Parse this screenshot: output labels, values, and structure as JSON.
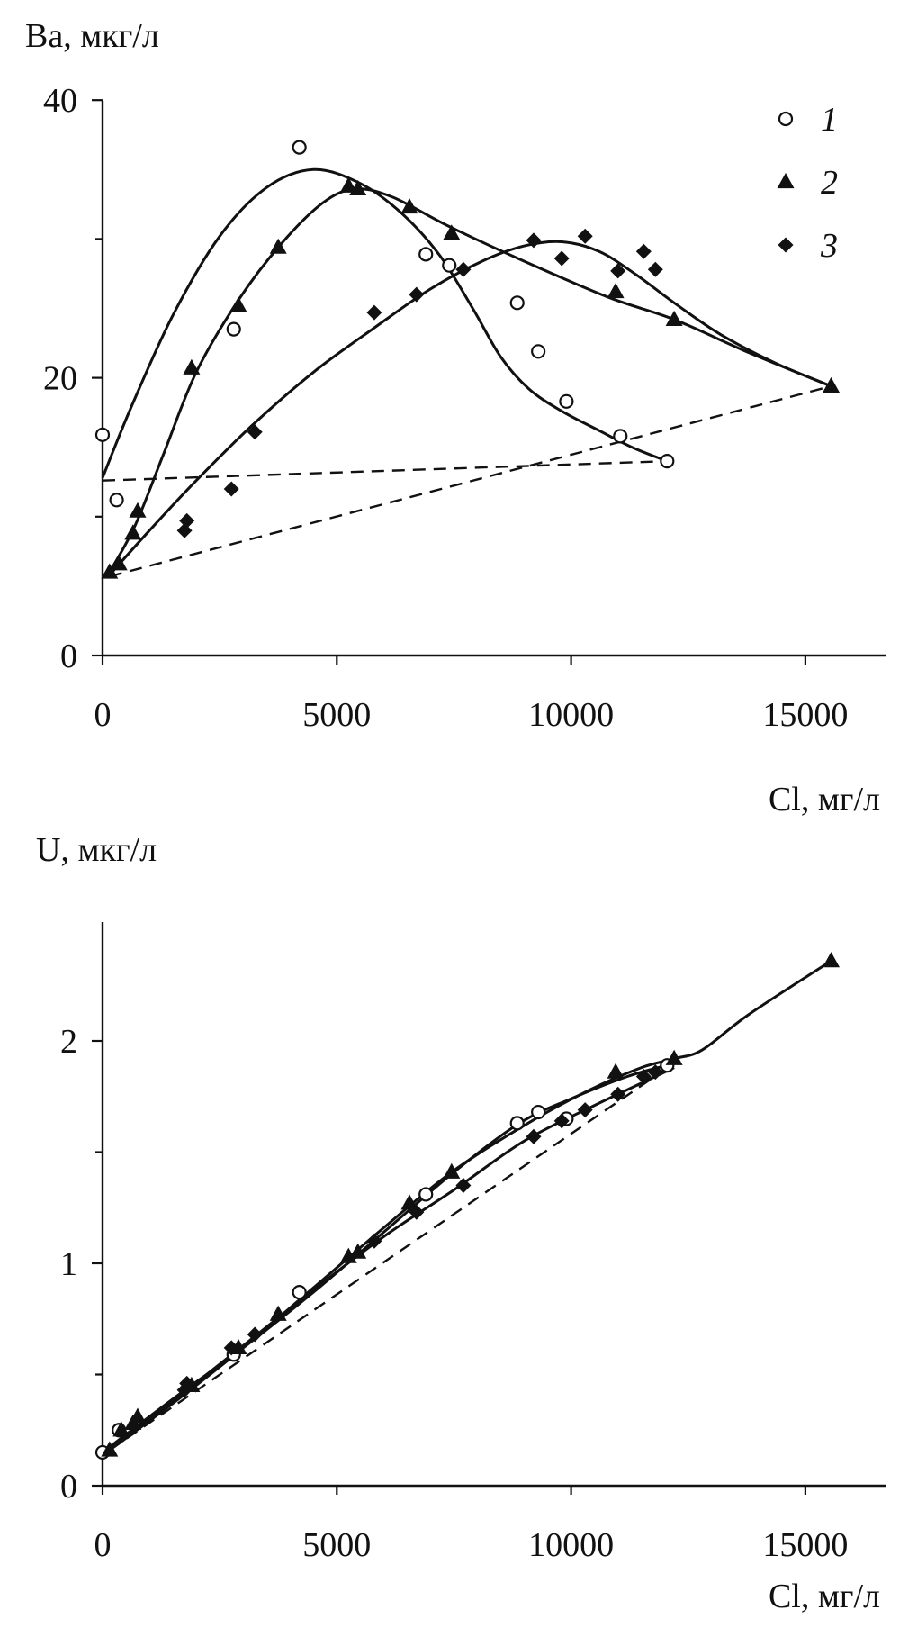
{
  "chart_data": [
    {
      "type": "scatter",
      "ylabel": "Ba, мкг/л",
      "xlabel": "Cl, мг/л",
      "xlim": [
        0,
        16000
      ],
      "ylim": [
        0,
        40
      ],
      "xticks": [
        0,
        5000,
        10000,
        15000
      ],
      "xtick_labels": [
        "0",
        "5000",
        "10000",
        "15000"
      ],
      "yticks": [
        0,
        20,
        40
      ],
      "ytick_labels": [
        "0",
        "20",
        "40"
      ],
      "minor_yticks": [
        10,
        30
      ],
      "legend_position": "top-right",
      "series": [
        {
          "name": "1",
          "marker": "open-circle",
          "points": [
            [
              0,
              15.9
            ],
            [
              300,
              11.2
            ],
            [
              2800,
              23.5
            ],
            [
              4200,
              36.6
            ],
            [
              6900,
              28.9
            ],
            [
              7400,
              28.1
            ],
            [
              8850,
              25.4
            ],
            [
              9300,
              21.9
            ],
            [
              9900,
              18.3
            ],
            [
              11050,
              15.8
            ],
            [
              12050,
              14.0
            ]
          ],
          "curve": [
            [
              0,
              12.8
            ],
            [
              600,
              17.8
            ],
            [
              1500,
              24.5
            ],
            [
              2500,
              30.2
            ],
            [
              3500,
              33.7
            ],
            [
              4500,
              35.0
            ],
            [
              5500,
              34.0
            ],
            [
              6400,
              31.8
            ],
            [
              7200,
              28.8
            ],
            [
              7900,
              25.0
            ],
            [
              8500,
              21.5
            ],
            [
              9100,
              19.2
            ],
            [
              9800,
              17.6
            ],
            [
              10600,
              16.2
            ],
            [
              11300,
              15.0
            ],
            [
              12050,
              14.0
            ]
          ],
          "dashed": [
            [
              0,
              12.6
            ],
            [
              12050,
              14.0
            ]
          ]
        },
        {
          "name": "2",
          "marker": "filled-triangle",
          "points": [
            [
              150,
              6.0
            ],
            [
              350,
              6.6
            ],
            [
              650,
              8.8
            ],
            [
              750,
              10.4
            ],
            [
              1900,
              20.7
            ],
            [
              2900,
              25.2
            ],
            [
              3750,
              29.4
            ],
            [
              5250,
              33.8
            ],
            [
              5450,
              33.6
            ],
            [
              6550,
              32.3
            ],
            [
              7450,
              30.4
            ],
            [
              10950,
              26.2
            ],
            [
              12200,
              24.2
            ],
            [
              15550,
              19.4
            ]
          ],
          "curve": [
            [
              150,
              6.0
            ],
            [
              700,
              9.4
            ],
            [
              1300,
              14.5
            ],
            [
              2000,
              20.4
            ],
            [
              2900,
              25.6
            ],
            [
              3800,
              29.6
            ],
            [
              4700,
              32.6
            ],
            [
              5400,
              33.6
            ],
            [
              6200,
              33.0
            ],
            [
              7400,
              30.9
            ],
            [
              9000,
              28.4
            ],
            [
              10800,
              25.8
            ],
            [
              12200,
              24.2
            ],
            [
              13800,
              21.8
            ],
            [
              15550,
              19.4
            ]
          ],
          "dashed": [
            [
              150,
              5.7
            ],
            [
              15550,
              19.4
            ]
          ]
        },
        {
          "name": "3",
          "marker": "filled-diamond",
          "points": [
            [
              1750,
              9.0
            ],
            [
              1800,
              9.7
            ],
            [
              2750,
              12.0
            ],
            [
              3250,
              16.1
            ],
            [
              5800,
              24.7
            ],
            [
              6700,
              26.0
            ],
            [
              7700,
              27.8
            ],
            [
              9200,
              29.9
            ],
            [
              9800,
              28.6
            ],
            [
              10300,
              30.2
            ],
            [
              11000,
              27.7
            ],
            [
              11550,
              29.1
            ],
            [
              11800,
              27.8
            ]
          ],
          "curve": [
            [
              150,
              5.8
            ],
            [
              1000,
              9.0
            ],
            [
              2000,
              12.6
            ],
            [
              3200,
              16.6
            ],
            [
              4500,
              20.4
            ],
            [
              5800,
              23.6
            ],
            [
              7000,
              26.4
            ],
            [
              8100,
              28.4
            ],
            [
              9000,
              29.5
            ],
            [
              9800,
              29.8
            ],
            [
              10600,
              29.1
            ],
            [
              11400,
              27.4
            ],
            [
              12200,
              25.4
            ],
            [
              13200,
              23.1
            ],
            [
              14400,
              21.0
            ],
            [
              15550,
              19.4
            ]
          ]
        }
      ]
    },
    {
      "type": "scatter",
      "ylabel": "U, мкг/л",
      "xlabel": "Cl, мг/л",
      "xlim": [
        0,
        16000
      ],
      "ylim": [
        0,
        2.5
      ],
      "xticks": [
        0,
        5000,
        10000,
        15000
      ],
      "xtick_labels": [
        "0",
        "5000",
        "10000",
        "15000"
      ],
      "yticks": [
        0,
        1,
        2
      ],
      "ytick_labels": [
        "0",
        "1",
        "2"
      ],
      "minor_yticks": [
        0.5,
        1.5
      ],
      "series": [
        {
          "name": "1",
          "marker": "open-circle",
          "points": [
            [
              0,
              0.15
            ],
            [
              350,
              0.25
            ],
            [
              2800,
              0.59
            ],
            [
              4200,
              0.87
            ],
            [
              6900,
              1.31
            ],
            [
              8850,
              1.63
            ],
            [
              9300,
              1.68
            ],
            [
              9900,
              1.65
            ],
            [
              12050,
              1.89
            ]
          ],
          "curve": [
            [
              0,
              0.15
            ],
            [
              1500,
              0.39
            ],
            [
              3000,
              0.62
            ],
            [
              4500,
              0.87
            ],
            [
              6000,
              1.14
            ],
            [
              7500,
              1.41
            ],
            [
              8900,
              1.63
            ],
            [
              10000,
              1.74
            ],
            [
              11200,
              1.84
            ],
            [
              12050,
              1.89
            ]
          ]
        },
        {
          "name": "2",
          "marker": "filled-triangle",
          "points": [
            [
              150,
              0.16
            ],
            [
              400,
              0.25
            ],
            [
              650,
              0.28
            ],
            [
              750,
              0.31
            ],
            [
              1900,
              0.45
            ],
            [
              2900,
              0.62
            ],
            [
              3750,
              0.77
            ],
            [
              5250,
              1.03
            ],
            [
              5450,
              1.05
            ],
            [
              6550,
              1.27
            ],
            [
              7450,
              1.41
            ],
            [
              10950,
              1.86
            ],
            [
              12200,
              1.92
            ],
            [
              15550,
              2.36
            ]
          ],
          "curve": [
            [
              150,
              0.16
            ],
            [
              1500,
              0.37
            ],
            [
              3000,
              0.62
            ],
            [
              4500,
              0.89
            ],
            [
              6000,
              1.16
            ],
            [
              7450,
              1.41
            ],
            [
              9000,
              1.62
            ],
            [
              10400,
              1.78
            ],
            [
              11500,
              1.88
            ],
            [
              12200,
              1.92
            ],
            [
              12800,
              1.96
            ],
            [
              13800,
              2.12
            ],
            [
              15550,
              2.36
            ]
          ]
        },
        {
          "name": "3",
          "marker": "filled-diamond",
          "points": [
            [
              1750,
              0.43
            ],
            [
              1800,
              0.46
            ],
            [
              2750,
              0.62
            ],
            [
              3250,
              0.68
            ],
            [
              5800,
              1.1
            ],
            [
              6700,
              1.23
            ],
            [
              7700,
              1.35
            ],
            [
              9200,
              1.57
            ],
            [
              9800,
              1.64
            ],
            [
              10300,
              1.69
            ],
            [
              11000,
              1.76
            ],
            [
              11550,
              1.84
            ],
            [
              11800,
              1.86
            ]
          ],
          "curve": [
            [
              150,
              0.16
            ],
            [
              1500,
              0.38
            ],
            [
              3000,
              0.63
            ],
            [
              4500,
              0.88
            ],
            [
              6000,
              1.12
            ],
            [
              7500,
              1.33
            ],
            [
              9000,
              1.55
            ],
            [
              10500,
              1.71
            ],
            [
              11500,
              1.81
            ],
            [
              12200,
              1.88
            ]
          ],
          "dashed": [
            [
              150,
              0.16
            ],
            [
              12200,
              1.9
            ]
          ]
        }
      ]
    }
  ]
}
